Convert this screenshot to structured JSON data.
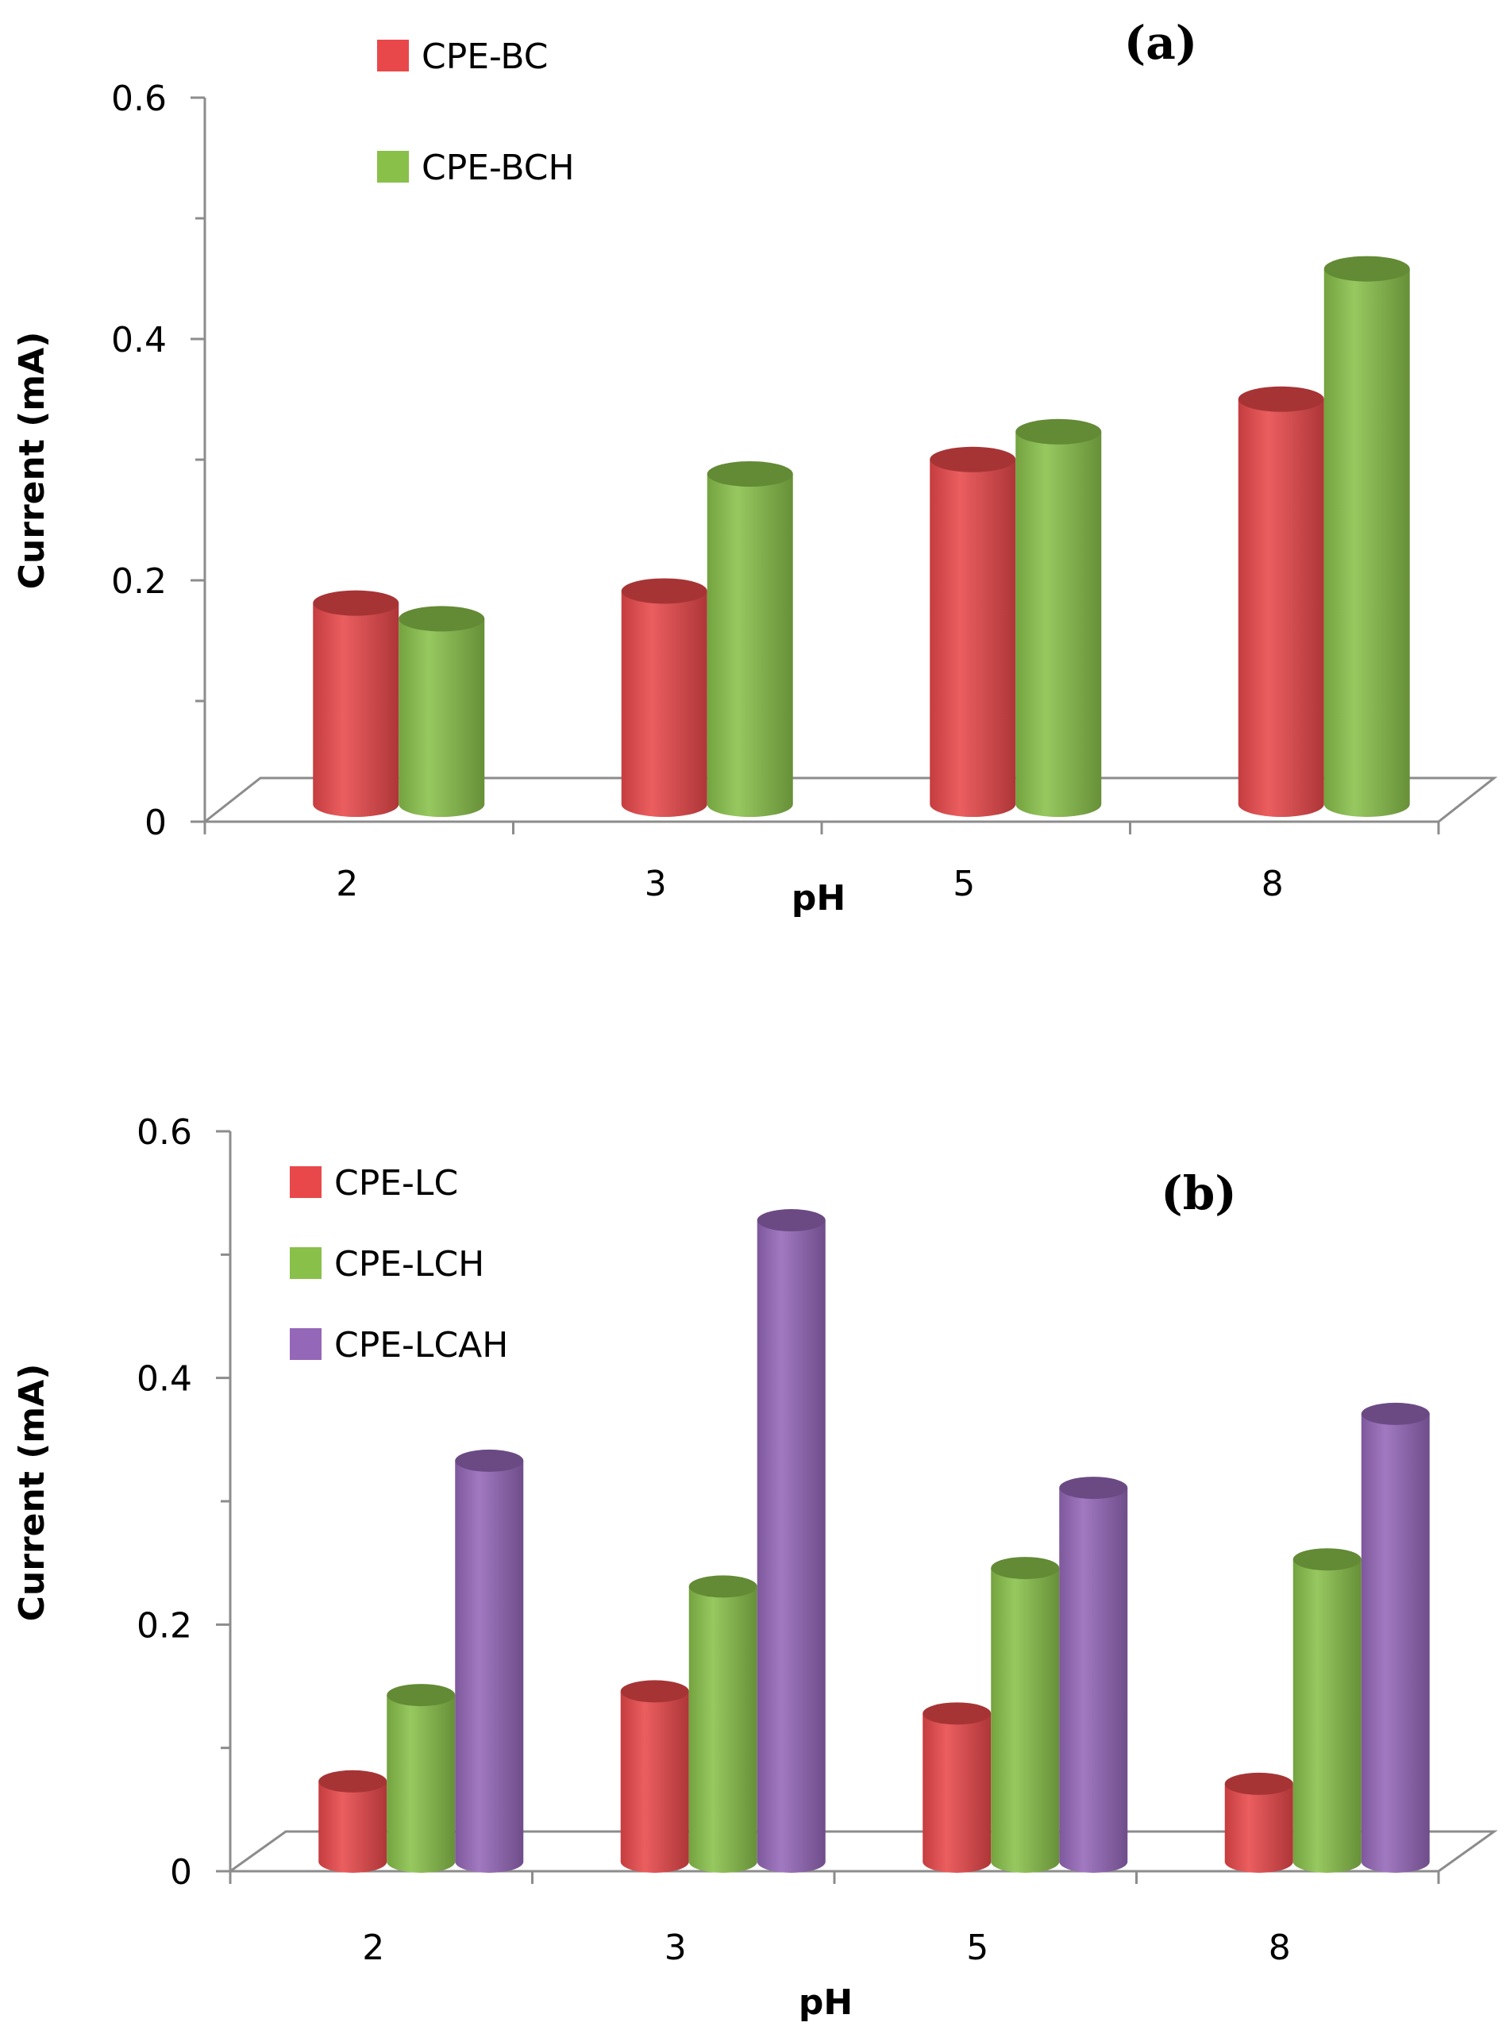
{
  "chart_data": [
    {
      "type": "bar",
      "panel_label": "(a)",
      "categories": [
        "2",
        "3",
        "5",
        "8"
      ],
      "series": [
        {
          "name": "CPE-BC",
          "color": "#e8484a",
          "values": [
            0.168,
            0.178,
            0.287,
            0.337
          ]
        },
        {
          "name": "CPE-BCH",
          "color": "#89c04a",
          "values": [
            0.155,
            0.275,
            0.31,
            0.445
          ]
        }
      ],
      "xlabel": "pH",
      "ylabel": "Current (mA)",
      "ylim": [
        0,
        0.6
      ],
      "yticks": [
        "0",
        "0.2",
        "0.4",
        "0.6"
      ],
      "grid": false,
      "legend_position": "top-left"
    },
    {
      "type": "bar",
      "panel_label": "(b)",
      "categories": [
        "2",
        "3",
        "5",
        "8"
      ],
      "series": [
        {
          "name": "CPE-LC",
          "color": "#e8484a",
          "values": [
            0.06,
            0.133,
            0.115,
            0.058
          ]
        },
        {
          "name": "CPE-LCH",
          "color": "#89c04a",
          "values": [
            0.13,
            0.218,
            0.233,
            0.24
          ]
        },
        {
          "name": "CPE-LCAH",
          "color": "#9467b8",
          "values": [
            0.32,
            0.515,
            0.298,
            0.358
          ]
        }
      ],
      "xlabel": "pH",
      "ylabel": "Current (mA)",
      "ylim": [
        0,
        0.6
      ],
      "yticks": [
        "0",
        "0.2",
        "0.4",
        "0.6"
      ],
      "grid": false,
      "legend_position": "top-left"
    }
  ]
}
